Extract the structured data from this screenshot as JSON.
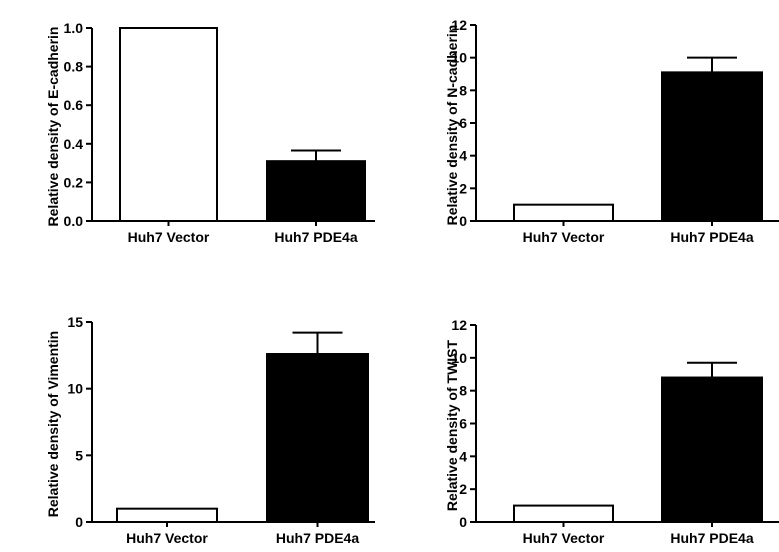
{
  "chart_data": [
    {
      "type": "bar",
      "categories": [
        "Huh7 Vector",
        "Huh7 PDE4a"
      ],
      "values": [
        1.0,
        0.31
      ],
      "errors": [
        0,
        0.055
      ],
      "bar_colors": [
        "#ffffff",
        "#000000"
      ],
      "ylabel": "Relative density of E-cadherin",
      "ylim": [
        0,
        1.0
      ],
      "yticks": [
        0.0,
        0.2,
        0.4,
        0.6,
        0.8,
        1.0
      ],
      "ytick_labels": [
        "0.0",
        "0.2",
        "0.4",
        "0.6",
        "0.8",
        "1.0"
      ],
      "grid": false
    },
    {
      "type": "bar",
      "categories": [
        "Huh7 Vector",
        "Huh7 PDE4a"
      ],
      "values": [
        1.0,
        9.1
      ],
      "errors": [
        0,
        0.9
      ],
      "bar_colors": [
        "#ffffff",
        "#000000"
      ],
      "ylabel": "Relative density of N-cadherin",
      "ylim": [
        0,
        12
      ],
      "yticks": [
        0,
        2,
        4,
        6,
        8,
        10,
        12
      ],
      "ytick_labels": [
        "0",
        "2",
        "4",
        "6",
        "8",
        "10",
        "12"
      ],
      "grid": false
    },
    {
      "type": "bar",
      "categories": [
        "Huh7 Vector",
        "Huh7 PDE4a"
      ],
      "values": [
        1.0,
        12.6
      ],
      "errors": [
        0,
        1.6
      ],
      "bar_colors": [
        "#ffffff",
        "#000000"
      ],
      "ylabel": "Relative density of Vimentin",
      "ylim": [
        0,
        15
      ],
      "yticks": [
        0,
        5,
        10,
        15
      ],
      "ytick_labels": [
        "0",
        "5",
        "10",
        "15"
      ],
      "grid": false
    },
    {
      "type": "bar",
      "categories": [
        "Huh7 Vector",
        "Huh7 PDE4a"
      ],
      "values": [
        1.0,
        8.8
      ],
      "errors": [
        0,
        0.9
      ],
      "bar_colors": [
        "#ffffff",
        "#000000"
      ],
      "ylabel": "Relative density of TWIST",
      "ylim": [
        0,
        12
      ],
      "yticks": [
        0,
        2,
        4,
        6,
        8,
        10,
        12
      ],
      "ytick_labels": [
        "0",
        "2",
        "4",
        "6",
        "8",
        "10",
        "12"
      ],
      "grid": false
    }
  ]
}
